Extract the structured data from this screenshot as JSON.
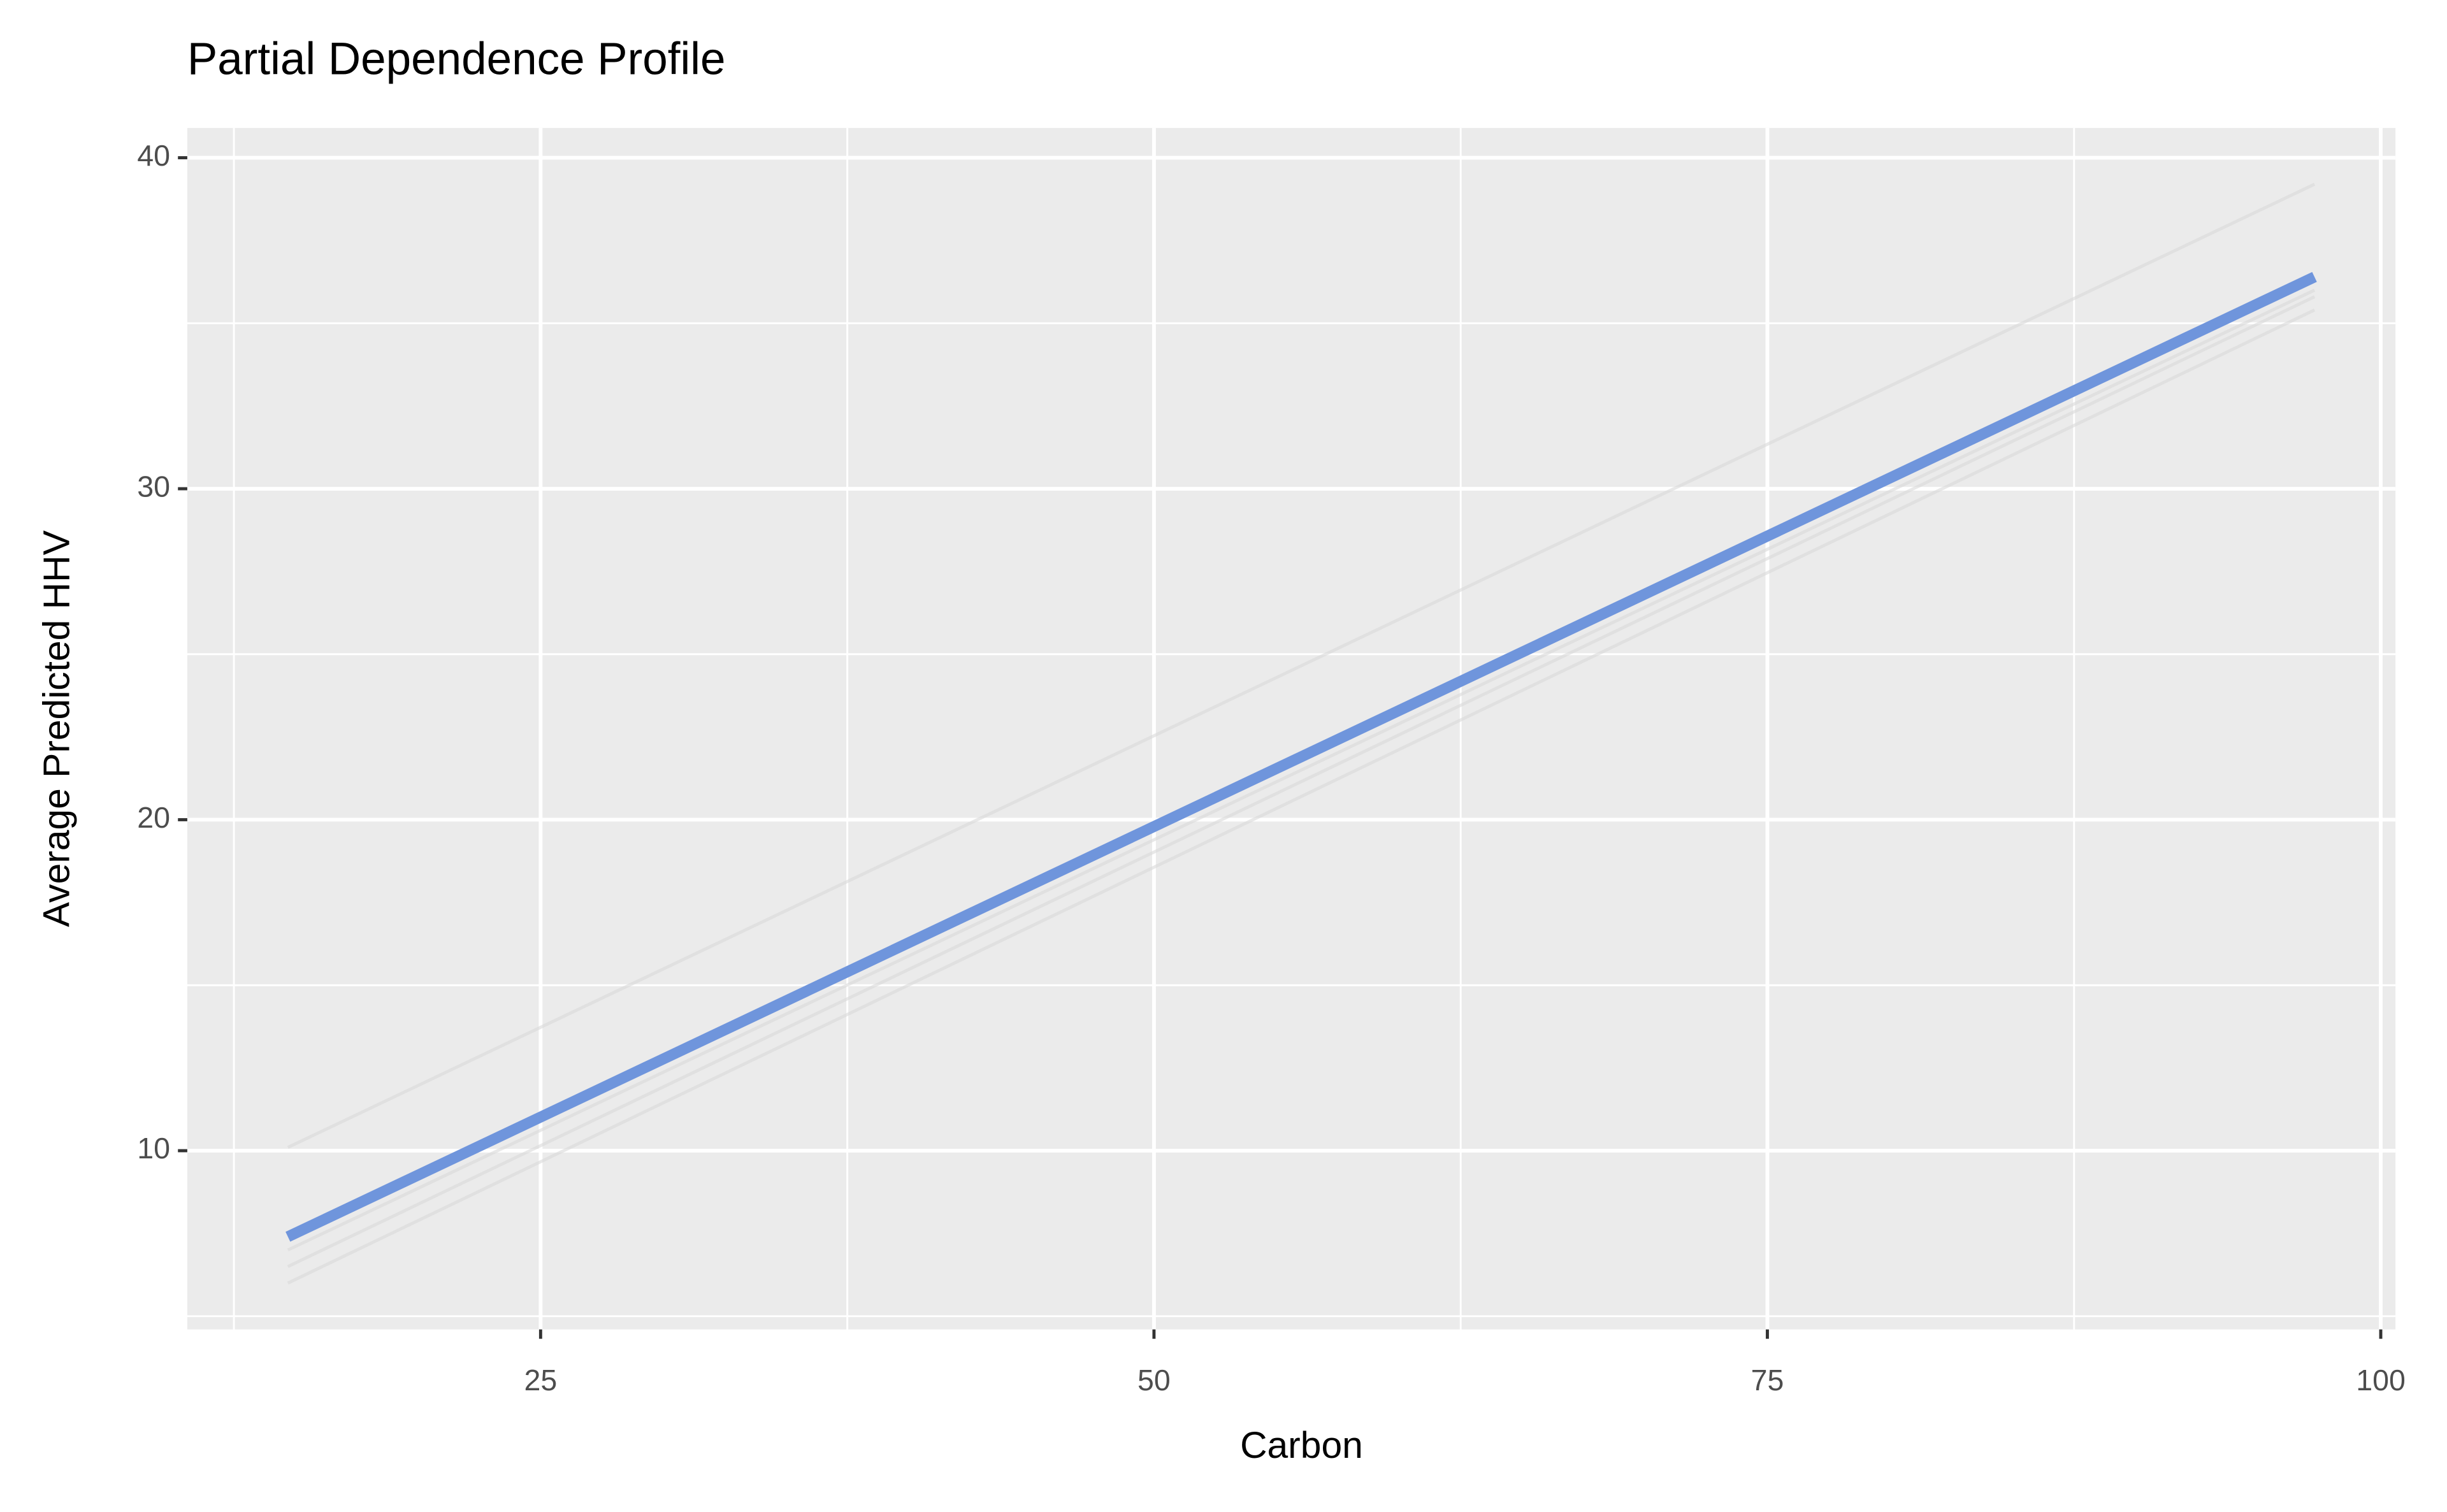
{
  "chart_data": {
    "type": "line",
    "title": "Partial Dependence Profile",
    "x_label": "Carbon",
    "y_label": "Average Predicted HHV",
    "x": [
      14.7,
      97.3
    ],
    "series": [
      {
        "color": "#d9d9d9",
        "values": [
          10.1,
          39.2
        ]
      },
      {
        "color": "#d9d9d9",
        "values": [
          7.0,
          36.0
        ]
      },
      {
        "color": "#d9d9d9",
        "values": [
          6.5,
          35.8
        ]
      },
      {
        "color": "#d9d9d9",
        "values": [
          6.0,
          35.4
        ]
      },
      {
        "color": "#6f95dc",
        "values": [
          7.4,
          36.4
        ]
      }
    ],
    "xlim": [
      10.6,
      100.6
    ],
    "ylim": [
      4.6,
      40.9
    ],
    "xticks": [
      25,
      50,
      75,
      100
    ],
    "yticks": [
      10,
      20,
      30,
      40
    ],
    "xminorticks": [
      12.5,
      37.5,
      62.5,
      87.5
    ],
    "yminorticks": [
      5,
      15,
      25,
      35
    ],
    "grid": true,
    "background": "#ebebeb"
  }
}
